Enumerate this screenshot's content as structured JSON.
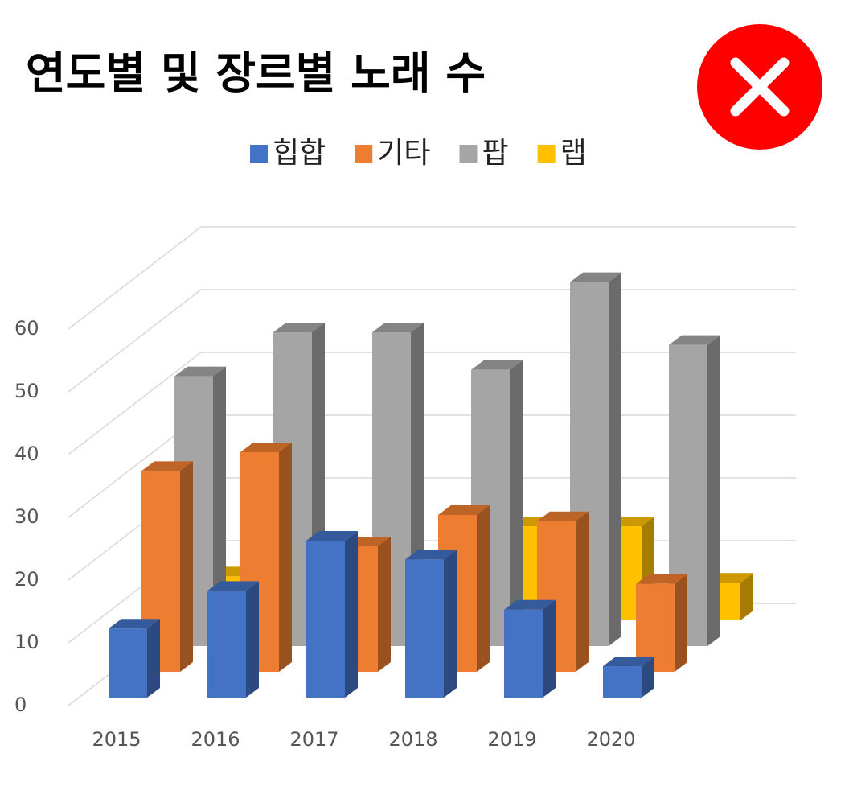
{
  "chart_data": {
    "type": "bar3d",
    "title": "연도별 및 장르별 노래 수",
    "categories": [
      "2015",
      "2016",
      "2017",
      "2018",
      "2019",
      "2020"
    ],
    "series": [
      {
        "name": "힙합",
        "color": "#4472c4",
        "values": [
          11,
          17,
          25,
          22,
          14,
          5
        ]
      },
      {
        "name": "기타",
        "color": "#ed7d31",
        "values": [
          32,
          35,
          20,
          25,
          24,
          14
        ]
      },
      {
        "name": "팝",
        "color": "#a5a5a5",
        "values": [
          43,
          50,
          50,
          44,
          58,
          48
        ]
      },
      {
        "name": "랩",
        "color": "#ffc000",
        "values": [
          7,
          0,
          0,
          15,
          15,
          6
        ]
      }
    ],
    "ylim": [
      0,
      60
    ],
    "yticks": [
      0,
      10,
      20,
      30,
      40,
      50,
      60
    ],
    "grid": true,
    "legend": "top"
  }
}
